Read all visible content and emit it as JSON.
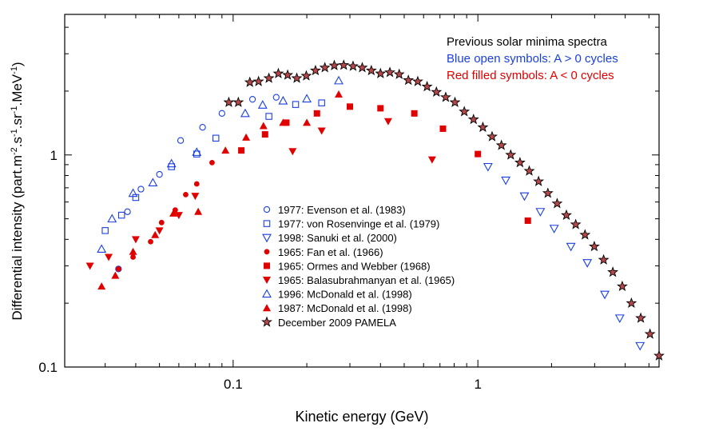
{
  "chart_data": {
    "type": "scatter",
    "x_scale": "log",
    "y_scale": "log",
    "xlim": [
      0.0205,
      5.5
    ],
    "ylim": [
      0.1,
      4.6
    ],
    "xlabel": "Kinetic energy (GeV)",
    "ylabel_main": "Differential intensity (part.m",
    "ylabel_parts": [
      {
        "t": "Differential intensity (part.m",
        "sup": false
      },
      {
        "t": "-2",
        "sup": true
      },
      {
        "t": ".s",
        "sup": false
      },
      {
        "t": "-1",
        "sup": true
      },
      {
        "t": ".sr",
        "sup": false
      },
      {
        "t": "-1",
        "sup": true
      },
      {
        "t": ".MeV",
        "sup": false
      },
      {
        "t": "-1",
        "sup": true
      },
      {
        "t": ")",
        "sup": false
      }
    ],
    "x_ticks": [
      {
        "value": 0.1,
        "label": "0.1"
      },
      {
        "value": 1,
        "label": "1"
      }
    ],
    "y_ticks": [
      {
        "value": 0.1,
        "label": "0.1"
      },
      {
        "value": 1,
        "label": "1"
      }
    ],
    "annotations": [
      {
        "text": "Previous solar minima spectra",
        "color": "#000000"
      },
      {
        "text": "Blue open symbols: A > 0 cycles",
        "color": "#1a3fe0"
      },
      {
        "text": "Red filled symbols: A < 0 cycles",
        "color": "#e00000"
      }
    ],
    "series": [
      {
        "name": "1977: Evenson et al. (1983)",
        "marker": "circle",
        "filled": false,
        "color": "#1a3fe0",
        "points": [
          [
            0.034,
            0.29
          ],
          [
            0.037,
            0.54
          ],
          [
            0.042,
            0.69
          ],
          [
            0.05,
            0.81
          ],
          [
            0.061,
            1.17
          ],
          [
            0.075,
            1.35
          ],
          [
            0.09,
            1.57
          ],
          [
            0.12,
            1.83
          ],
          [
            0.15,
            1.87
          ]
        ]
      },
      {
        "name": "1977: von Rosenvinge et al. (1979)",
        "marker": "square",
        "filled": false,
        "color": "#1a3fe0",
        "points": [
          [
            0.03,
            0.44
          ],
          [
            0.035,
            0.52
          ],
          [
            0.04,
            0.63
          ],
          [
            0.056,
            0.88
          ],
          [
            0.071,
            1.01
          ],
          [
            0.085,
            1.2
          ],
          [
            0.14,
            1.52
          ],
          [
            0.18,
            1.73
          ],
          [
            0.23,
            1.76
          ]
        ]
      },
      {
        "name": "1998: Sanuki et al. (2000)",
        "marker": "triangle-down",
        "filled": false,
        "color": "#1a3fe0",
        "points": [
          [
            1.1,
            0.88
          ],
          [
            1.3,
            0.76
          ],
          [
            1.55,
            0.64
          ],
          [
            1.8,
            0.54
          ],
          [
            2.05,
            0.45
          ],
          [
            2.4,
            0.37
          ],
          [
            2.8,
            0.31
          ],
          [
            3.3,
            0.22
          ],
          [
            3.8,
            0.17
          ],
          [
            4.6,
            0.126
          ]
        ]
      },
      {
        "name": "1965: Fan et al. (1966)",
        "marker": "circle",
        "filled": true,
        "color": "#e00000",
        "points": [
          [
            0.034,
            0.29
          ],
          [
            0.039,
            0.33
          ],
          [
            0.046,
            0.39
          ],
          [
            0.051,
            0.48
          ],
          [
            0.058,
            0.55
          ],
          [
            0.064,
            0.65
          ],
          [
            0.071,
            0.73
          ],
          [
            0.082,
            0.92
          ]
        ]
      },
      {
        "name": "1965: Ormes and Webber (1968)",
        "marker": "square",
        "filled": true,
        "color": "#e00000",
        "points": [
          [
            0.108,
            1.05
          ],
          [
            0.135,
            1.25
          ],
          [
            0.165,
            1.42
          ],
          [
            0.22,
            1.57
          ],
          [
            0.3,
            1.69
          ],
          [
            0.4,
            1.66
          ],
          [
            0.55,
            1.57
          ],
          [
            0.72,
            1.33
          ],
          [
            1.0,
            1.01
          ],
          [
            1.6,
            0.49
          ]
        ]
      },
      {
        "name": "1965: Balasubrahmanyan et al. (1965)",
        "marker": "triangle-down",
        "filled": true,
        "color": "#e00000",
        "points": [
          [
            0.026,
            0.3
          ],
          [
            0.031,
            0.33
          ],
          [
            0.04,
            0.4
          ],
          [
            0.05,
            0.44
          ],
          [
            0.06,
            0.52
          ],
          [
            0.07,
            0.64
          ],
          [
            0.175,
            1.04
          ],
          [
            0.23,
            1.3
          ],
          [
            0.43,
            1.44
          ],
          [
            0.65,
            0.95
          ]
        ]
      },
      {
        "name": "1996: McDonald et al. (1998)",
        "marker": "triangle-up",
        "filled": false,
        "color": "#1a3fe0",
        "points": [
          [
            0.029,
            0.36
          ],
          [
            0.032,
            0.5
          ],
          [
            0.039,
            0.66
          ],
          [
            0.047,
            0.74
          ],
          [
            0.056,
            0.91
          ],
          [
            0.071,
            1.03
          ],
          [
            0.112,
            1.57
          ],
          [
            0.132,
            1.72
          ],
          [
            0.16,
            1.8
          ],
          [
            0.2,
            1.84
          ],
          [
            0.27,
            2.24
          ]
        ]
      },
      {
        "name": "1987: McDonald et al. (1998)",
        "marker": "triangle-up",
        "filled": true,
        "color": "#e00000",
        "points": [
          [
            0.029,
            0.24
          ],
          [
            0.033,
            0.27
          ],
          [
            0.039,
            0.35
          ],
          [
            0.048,
            0.42
          ],
          [
            0.057,
            0.53
          ],
          [
            0.072,
            0.54
          ],
          [
            0.093,
            1.05
          ],
          [
            0.113,
            1.21
          ],
          [
            0.133,
            1.37
          ],
          [
            0.16,
            1.42
          ],
          [
            0.2,
            1.42
          ],
          [
            0.27,
            1.93
          ]
        ]
      },
      {
        "name": "December 2009 PAMELA",
        "marker": "star",
        "filled": true,
        "color": "#b5484a",
        "points": [
          [
            0.096,
            1.77
          ],
          [
            0.105,
            1.77
          ],
          [
            0.117,
            2.2
          ],
          [
            0.127,
            2.22
          ],
          [
            0.14,
            2.3
          ],
          [
            0.153,
            2.42
          ],
          [
            0.167,
            2.38
          ],
          [
            0.182,
            2.3
          ],
          [
            0.199,
            2.36
          ],
          [
            0.217,
            2.5
          ],
          [
            0.237,
            2.58
          ],
          [
            0.259,
            2.64
          ],
          [
            0.283,
            2.65
          ],
          [
            0.309,
            2.62
          ],
          [
            0.337,
            2.58
          ],
          [
            0.367,
            2.5
          ],
          [
            0.4,
            2.42
          ],
          [
            0.437,
            2.45
          ],
          [
            0.477,
            2.4
          ],
          [
            0.52,
            2.25
          ],
          [
            0.568,
            2.22
          ],
          [
            0.62,
            2.1
          ],
          [
            0.677,
            1.98
          ],
          [
            0.739,
            1.87
          ],
          [
            0.806,
            1.77
          ],
          [
            0.88,
            1.6
          ],
          [
            0.96,
            1.47
          ],
          [
            1.048,
            1.35
          ],
          [
            1.143,
            1.22
          ],
          [
            1.248,
            1.11
          ],
          [
            1.362,
            1.0
          ],
          [
            1.486,
            0.92
          ],
          [
            1.622,
            0.84
          ],
          [
            1.77,
            0.75
          ],
          [
            1.932,
            0.66
          ],
          [
            2.108,
            0.59
          ],
          [
            2.3,
            0.52
          ],
          [
            2.51,
            0.47
          ],
          [
            2.74,
            0.42
          ],
          [
            2.99,
            0.37
          ],
          [
            3.265,
            0.32
          ],
          [
            3.56,
            0.28
          ],
          [
            3.89,
            0.24
          ],
          [
            4.24,
            0.2
          ],
          [
            4.63,
            0.17
          ],
          [
            5.05,
            0.143
          ],
          [
            5.5,
            0.113
          ]
        ]
      }
    ]
  }
}
